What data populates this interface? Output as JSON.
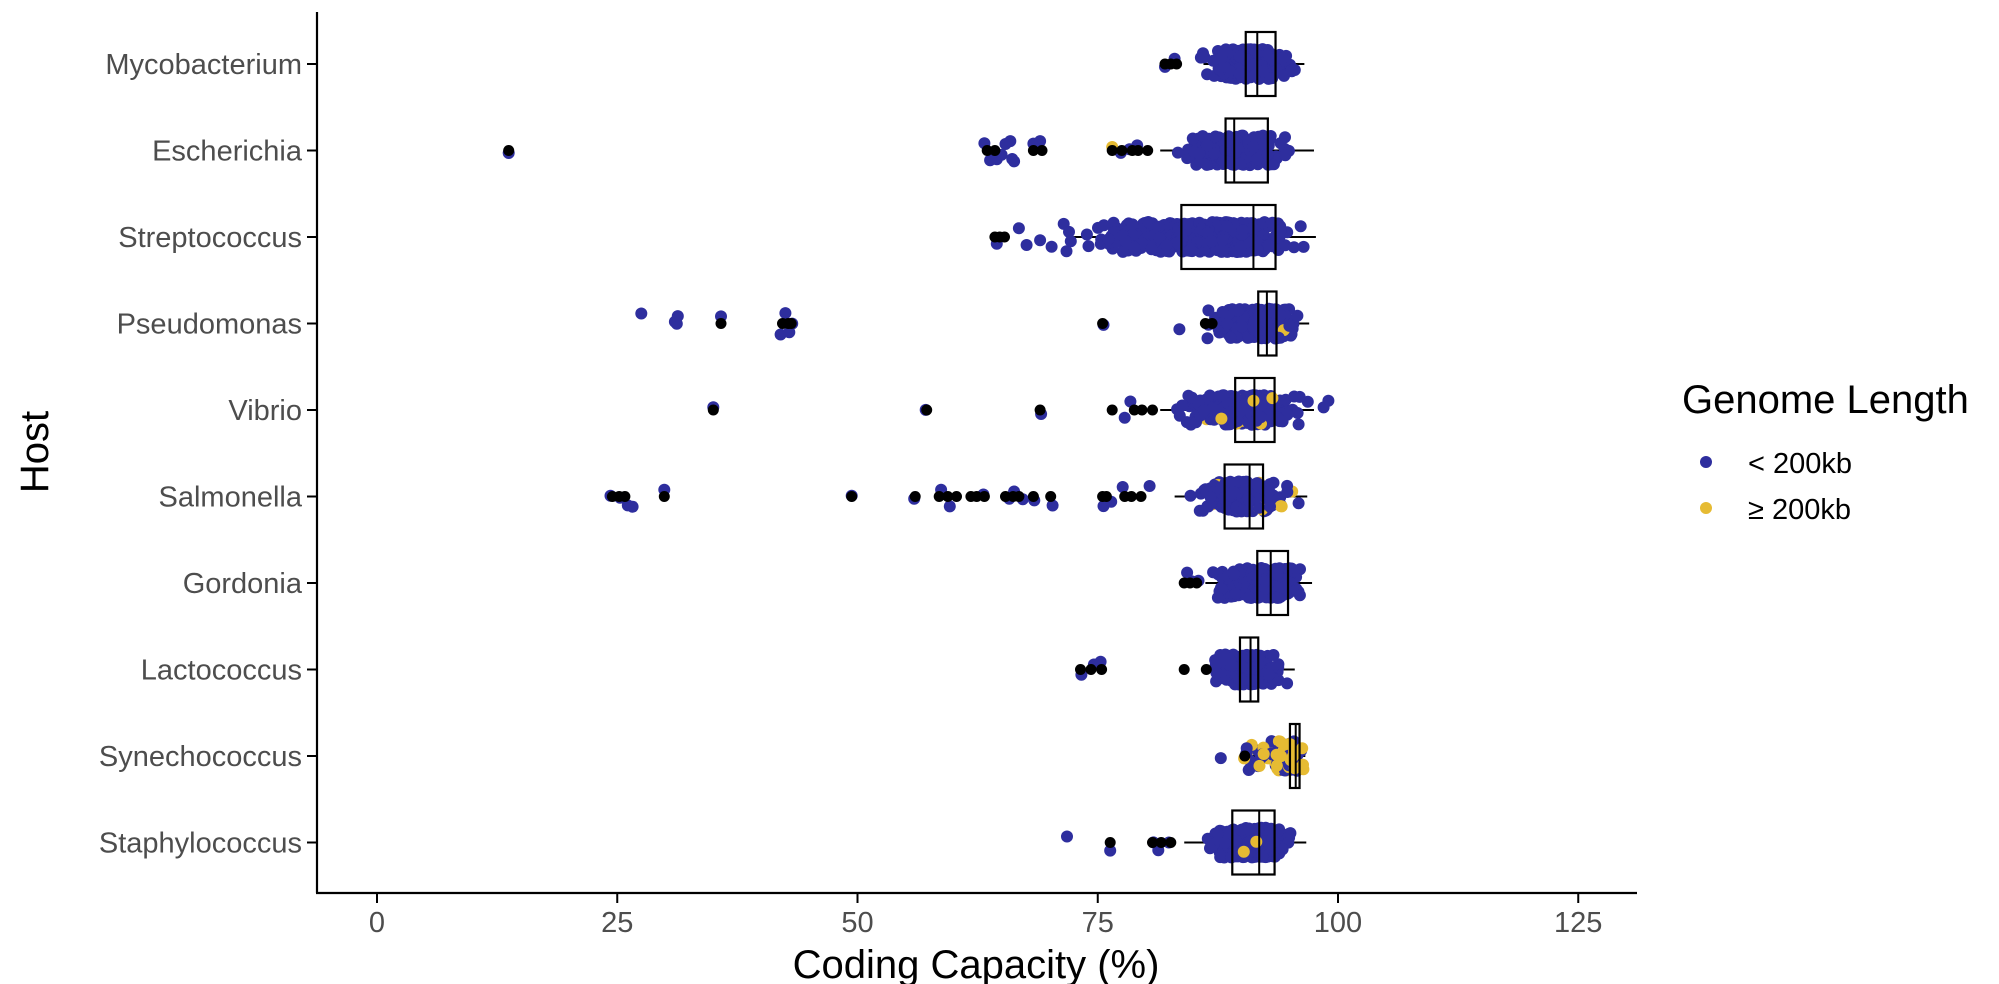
{
  "chart_data": {
    "type": "scatter",
    "subtype": "jittered boxplot (dot + box)",
    "xlabel": "Coding Capacity (%)",
    "ylabel": "Host",
    "xlim": [
      -6,
      131
    ],
    "xticks": [
      0,
      25,
      50,
      75,
      100,
      125
    ],
    "grid": false,
    "legend": {
      "title": "Genome Length",
      "placement": "right",
      "entries": [
        {
          "label": "< 200kb",
          "color": "#2e2e9e"
        },
        {
          "label": "≥ 200kb",
          "color": "#e6bb33"
        }
      ]
    },
    "colors": {
      "small": "#2e2e9e",
      "large": "#e6bb33",
      "outlier": "#000000"
    },
    "categories": [
      "Mycobacterium",
      "Escherichia",
      "Streptococcus",
      "Pseudomonas",
      "Vibrio",
      "Salmonella",
      "Gordonia",
      "Lactococcus",
      "Synechococcus",
      "Staphylococcus"
    ],
    "hosts": [
      {
        "name": "Mycobacterium",
        "q1": 90.4,
        "median": 91.6,
        "q3": 93.5,
        "whisker_low": 86.0,
        "whisker_high": 96.5,
        "cloud": {
          "min": 84.0,
          "max": 96.8,
          "n": 300,
          "large_frac": 0
        },
        "outliers": [
          82.0,
          82.6,
          83.2
        ],
        "extra_points": [
          {
            "x": 82.0,
            "g": "small"
          },
          {
            "x": 83.0,
            "g": "small"
          }
        ]
      },
      {
        "name": "Escherichia",
        "q1": 88.3,
        "median": 89.2,
        "q3": 92.7,
        "whisker_low": 81.5,
        "whisker_high": 97.5,
        "cloud": {
          "min": 80.5,
          "max": 97.8,
          "n": 240,
          "large_frac": 0
        },
        "outliers": [
          13.7,
          63.5,
          64.3,
          68.3,
          69.2,
          76.5,
          77.5,
          78.6,
          79.2,
          80.2
        ],
        "extra_points": [
          {
            "x": 13.7,
            "g": "small"
          },
          {
            "x": 63.2,
            "g": "small"
          },
          {
            "x": 63.8,
            "g": "small"
          },
          {
            "x": 64.5,
            "g": "small"
          },
          {
            "x": 65.0,
            "g": "small"
          },
          {
            "x": 65.4,
            "g": "small"
          },
          {
            "x": 65.9,
            "g": "small"
          },
          {
            "x": 66.1,
            "g": "small"
          },
          {
            "x": 66.3,
            "g": "small"
          },
          {
            "x": 68.3,
            "g": "small"
          },
          {
            "x": 69.0,
            "g": "small"
          },
          {
            "x": 76.5,
            "g": "large"
          },
          {
            "x": 77.4,
            "g": "small"
          },
          {
            "x": 78.3,
            "g": "small"
          },
          {
            "x": 79.1,
            "g": "small"
          }
        ]
      },
      {
        "name": "Streptococcus",
        "q1": 83.7,
        "median": 91.2,
        "q3": 93.5,
        "whisker_low": 72.0,
        "whisker_high": 97.7,
        "cloud": {
          "min": 66.0,
          "max": 98.0,
          "n": 520,
          "large_frac": 0
        },
        "outliers": [
          64.3,
          64.8,
          65.3
        ],
        "extra_points": [
          {
            "x": 64.5,
            "g": "small"
          },
          {
            "x": 66.8,
            "g": "small"
          },
          {
            "x": 67.6,
            "g": "small"
          },
          {
            "x": 69.0,
            "g": "small"
          },
          {
            "x": 70.2,
            "g": "small"
          }
        ]
      },
      {
        "name": "Pseudomonas",
        "q1": 91.7,
        "median": 92.6,
        "q3": 93.6,
        "whisker_low": 87.0,
        "whisker_high": 97.0,
        "cloud": {
          "min": 84.0,
          "max": 97.5,
          "n": 260,
          "large_frac": 0.02
        },
        "outliers": [
          35.8,
          42.2,
          42.8,
          43.1,
          75.5,
          86.2,
          86.9
        ],
        "extra_points": [
          {
            "x": 27.5,
            "g": "small"
          },
          {
            "x": 31.0,
            "g": "small"
          },
          {
            "x": 31.2,
            "g": "small"
          },
          {
            "x": 31.3,
            "g": "small"
          },
          {
            "x": 35.8,
            "g": "small"
          },
          {
            "x": 42.0,
            "g": "small"
          },
          {
            "x": 42.5,
            "g": "small"
          },
          {
            "x": 42.9,
            "g": "small"
          },
          {
            "x": 43.2,
            "g": "small"
          },
          {
            "x": 75.6,
            "g": "small"
          },
          {
            "x": 83.5,
            "g": "small"
          }
        ]
      },
      {
        "name": "Vibrio",
        "q1": 89.3,
        "median": 91.3,
        "q3": 93.4,
        "whisker_low": 81.5,
        "whisker_high": 97.5,
        "cloud": {
          "min": 80.0,
          "max": 98.5,
          "n": 280,
          "large_frac": 0.05
        },
        "outliers": [
          35.0,
          57.2,
          69.0,
          76.5,
          78.8,
          79.6,
          80.7
        ],
        "extra_points": [
          {
            "x": 35.0,
            "g": "small"
          },
          {
            "x": 57.1,
            "g": "small"
          },
          {
            "x": 69.1,
            "g": "small"
          },
          {
            "x": 77.8,
            "g": "small"
          },
          {
            "x": 78.4,
            "g": "small"
          },
          {
            "x": 99.0,
            "g": "small"
          },
          {
            "x": 98.5,
            "g": "small"
          }
        ]
      },
      {
        "name": "Salmonella",
        "q1": 88.2,
        "median": 90.8,
        "q3": 92.2,
        "whisker_low": 83.0,
        "whisker_high": 96.8,
        "cloud": {
          "min": 83.0,
          "max": 96.5,
          "n": 260,
          "large_frac": 0.03
        },
        "outliers": [
          24.5,
          25.2,
          25.8,
          29.9,
          49.4,
          56.0,
          58.5,
          59.4,
          60.3,
          61.8,
          62.4,
          63.2,
          65.4,
          66.2,
          66.8,
          68.3,
          70.1,
          75.5,
          75.9,
          77.8,
          78.5,
          79.5
        ],
        "extra_points": [
          {
            "x": 24.3,
            "g": "small"
          },
          {
            "x": 25.3,
            "g": "small"
          },
          {
            "x": 26.1,
            "g": "small"
          },
          {
            "x": 26.6,
            "g": "small"
          },
          {
            "x": 29.9,
            "g": "small"
          },
          {
            "x": 49.4,
            "g": "small"
          },
          {
            "x": 55.9,
            "g": "small"
          },
          {
            "x": 58.7,
            "g": "small"
          },
          {
            "x": 59.6,
            "g": "small"
          },
          {
            "x": 63.1,
            "g": "small"
          },
          {
            "x": 65.8,
            "g": "small"
          },
          {
            "x": 66.3,
            "g": "small"
          },
          {
            "x": 67.2,
            "g": "small"
          },
          {
            "x": 68.4,
            "g": "small"
          },
          {
            "x": 70.3,
            "g": "small"
          },
          {
            "x": 75.6,
            "g": "small"
          },
          {
            "x": 76.4,
            "g": "small"
          },
          {
            "x": 77.6,
            "g": "small"
          },
          {
            "x": 80.4,
            "g": "small"
          },
          {
            "x": 95.9,
            "g": "small"
          }
        ]
      },
      {
        "name": "Gordonia",
        "q1": 91.6,
        "median": 93.0,
        "q3": 94.8,
        "whisker_low": 86.2,
        "whisker_high": 97.3,
        "cloud": {
          "min": 84.5,
          "max": 97.5,
          "n": 230,
          "large_frac": 0
        },
        "outliers": [
          84.0,
          84.6,
          85.3
        ],
        "extra_points": [
          {
            "x": 84.3,
            "g": "small"
          },
          {
            "x": 84.8,
            "g": "small"
          }
        ]
      },
      {
        "name": "Lactococcus",
        "q1": 89.8,
        "median": 90.9,
        "q3": 91.7,
        "whisker_low": 86.0,
        "whisker_high": 95.5,
        "cloud": {
          "min": 85.5,
          "max": 95.5,
          "n": 220,
          "large_frac": 0
        },
        "outliers": [
          73.2,
          74.3,
          75.4,
          84.0,
          86.3
        ],
        "extra_points": [
          {
            "x": 73.3,
            "g": "small"
          },
          {
            "x": 74.6,
            "g": "small"
          },
          {
            "x": 75.3,
            "g": "small"
          }
        ]
      },
      {
        "name": "Synechococcus",
        "q1": 95.0,
        "median": 95.6,
        "q3": 96.0,
        "whisker_low": 91.0,
        "whisker_high": 96.6,
        "cloud": {
          "min": 88.0,
          "max": 97.2,
          "n": 90,
          "large_frac": 0.35
        },
        "outliers": [
          90.3
        ],
        "extra_points": [
          {
            "x": 87.8,
            "g": "small"
          }
        ]
      },
      {
        "name": "Staphylococcus",
        "q1": 89.0,
        "median": 91.8,
        "q3": 93.4,
        "whisker_low": 84.0,
        "whisker_high": 96.7,
        "cloud": {
          "min": 84.0,
          "max": 96.7,
          "n": 280,
          "large_frac": 0.02
        },
        "outliers": [
          76.3,
          80.7,
          81.6,
          82.6
        ],
        "extra_points": [
          {
            "x": 71.8,
            "g": "small"
          },
          {
            "x": 76.3,
            "g": "small"
          },
          {
            "x": 80.8,
            "g": "small"
          },
          {
            "x": 81.3,
            "g": "small"
          },
          {
            "x": 82.4,
            "g": "small"
          },
          {
            "x": 90.2,
            "g": "large"
          },
          {
            "x": 91.5,
            "g": "large"
          }
        ]
      }
    ]
  }
}
